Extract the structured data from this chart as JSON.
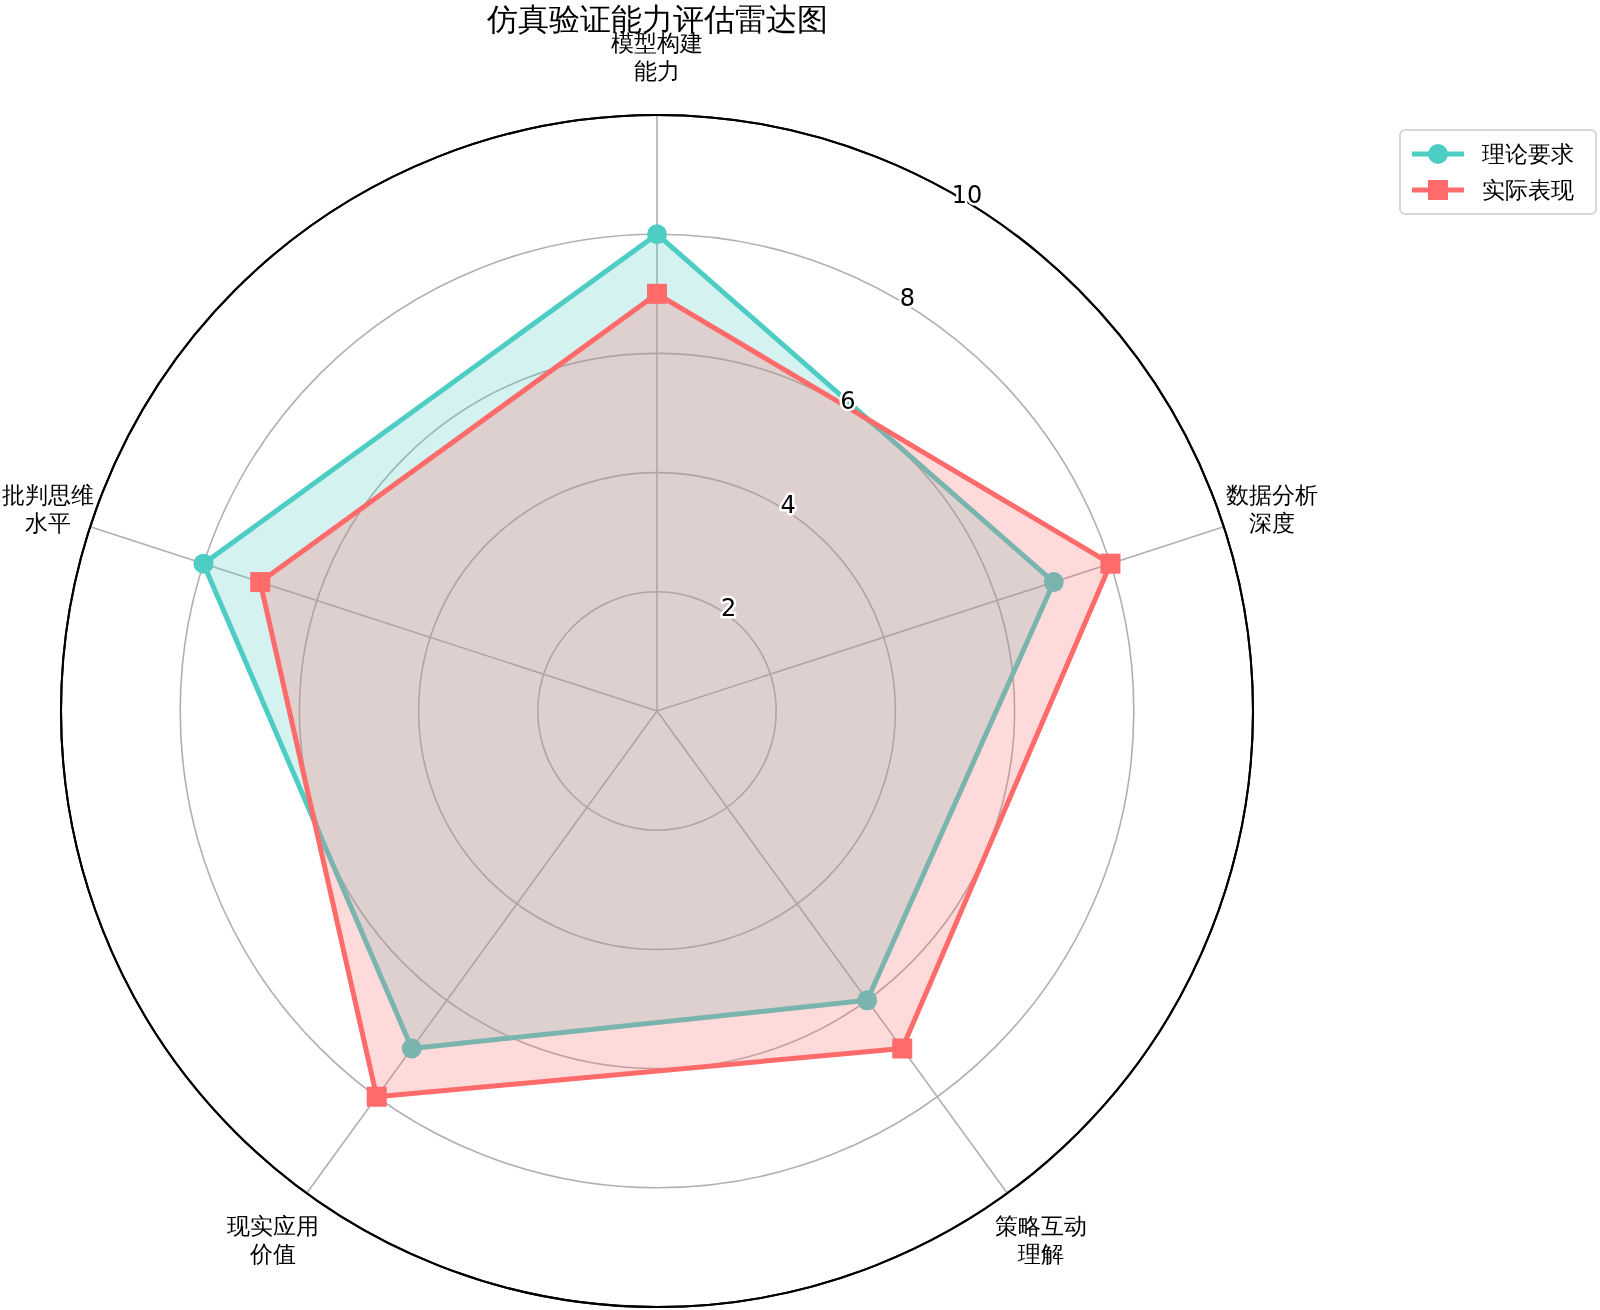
{
  "chart_data": {
    "type": "radar",
    "title": "仿真验证能力评估雷达图",
    "categories": [
      "模型构建能力",
      "数据分析深度",
      "策略互动理解",
      "现实应用价值",
      "批判思维水平"
    ],
    "series": [
      {
        "name": "理论要求",
        "color": "#4ecdc4",
        "marker": "circle",
        "values": [
          8,
          7,
          6,
          7,
          8
        ]
      },
      {
        "name": "实际表现",
        "color": "#ff6b6b",
        "marker": "square",
        "values": [
          7,
          8,
          7,
          8,
          7
        ]
      }
    ],
    "ylim": [
      0,
      10
    ],
    "yticks": [
      2,
      4,
      6,
      8,
      10
    ],
    "grid": true,
    "legend": "top right"
  }
}
